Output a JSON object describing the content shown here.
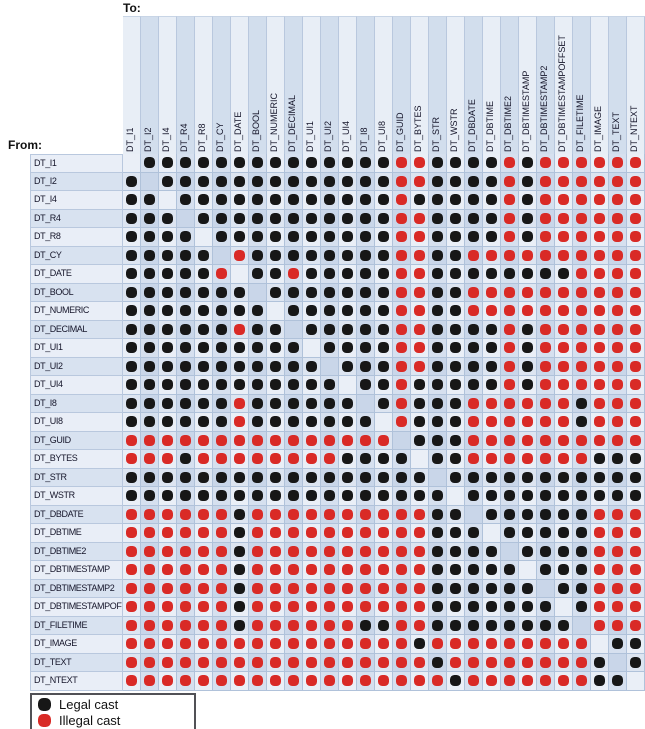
{
  "page": {
    "to_label": "To:",
    "from_label": "From:"
  },
  "legend": {
    "legal_label": "Legal cast",
    "illegal_label": "Illegal cast",
    "legal_color": "#171717",
    "illegal_color": "#d92a26"
  },
  "chart_data": {
    "type": "heatmap",
    "description": "Cast legality matrix between data types; rows are the From type, columns are the To type",
    "cell_encoding": {
      "B": "legal cast (black dot)",
      "R": "illegal cast (red dot)",
      "X": "no dot (same-type diagonal)"
    },
    "categories": [
      "DT_I1",
      "DT_I2",
      "DT_I4",
      "DT_R4",
      "DT_R8",
      "DT_CY",
      "DT_DATE",
      "DT_BOOL",
      "DT_NUMERIC",
      "DT_DECIMAL",
      "DT_UI1",
      "DT_UI2",
      "DT_UI4",
      "DT_I8",
      "DT_UI8",
      "DT_GUID",
      "DT_BYTES",
      "DT_STR",
      "DT_WSTR",
      "DT_DBDATE",
      "DT_DBTIME",
      "DT_DBTIME2",
      "DT_DBTIMESTAMP",
      "DT_DBTIMESTAMP2",
      "DT_DBTIMESTAMPOFFSET",
      "DT_FILETIME",
      "DT_IMAGE",
      "DT_TEXT",
      "DT_NTEXT"
    ],
    "rows": [
      "DT_I1",
      "DT_I2",
      "DT_I4",
      "DT_R4",
      "DT_R8",
      "DT_CY",
      "DT_DATE",
      "DT_BOOL",
      "DT_NUMERIC",
      "DT_DECIMAL",
      "DT_UI1",
      "DT_UI2",
      "DT_UI4",
      "DT_I8",
      "DT_UI8",
      "DT_GUID",
      "DT_BYTES",
      "DT_STR",
      "DT_WSTR",
      "DT_DBDATE",
      "DT_DBTIME",
      "DT_DBTIME2",
      "DT_DBTIMESTAMP",
      "DT_DBTIMESTAMP2",
      "DT_DBTIMESTAMPOFFSET",
      "DT_FILETIME",
      "DT_IMAGE",
      "DT_TEXT",
      "DT_NTEXT"
    ],
    "values": [
      "XBBBBBBBBBBBBBBRRBBBBRBRRRRRR",
      "BXBBBBBBBBBBBBBRRBBBBRBRRRRRR",
      "BBXBBBBBBBBBBBBRBBBBBRBRRRRRR",
      "BBBXBBBBBBBBBBBRRBBBBRBRRRRRR",
      "BBBBXBBBBBBBBBBRRBBBBRBRRRRRR",
      "BBBBBXRBBBBBBBBRRBBRRRRRRRRRR",
      "BBBBBRXBBRBBBBBRRBBBBBBBBRRRR",
      "BBBBBBBXBBBBBBBRRBBRRRRRRRRRR",
      "BBBBBBBBXBBBBBBRRBBRRRRRRRRRR",
      "BBBBBBRBBXBBBBBRRBBBBRBRRRRRR",
      "BBBBBBBBBBXBBBBRRBBBBRBRRRRRR",
      "BBBBBBBBBBBXBBBRRBBBBRBRRRRRR",
      "BBBBBBBBBBBBXBBRBBBBBRBRRRRRR",
      "BBBBBBRBBBBBBXBRBBBRRRRRRBRRR",
      "BBBBBBRBBBBBBBXRBBBRRRRRRBRRR",
      "RRRRRRRRRRRRRRRXBBBRRRRRRRRRR",
      "RRRBRRRRRRRRBBBBXBBRRRRRRRBBB",
      "BBBBBBBBBBBBBBBBBXBBBBBBBBBBB",
      "BBBBBBBBBBBBBBBBBBXBBBBBBBBBB",
      "RRRRRRBRRRRRRRRRRBBXBBBBBBRRR",
      "RRRRRRBRRRRRRRRRRBBBXBBBBBRRR",
      "RRRRRRBRRRRRRRRRRBBBBXBBBBRRR",
      "RRRRRRBRRRRRRRRRRBBBBBXBBBRRR",
      "RRRRRRBRRRRRRRRRRBBBBBBXBBRRR",
      "RRRRRRBRRRRRRRRRRBBBBBBBXBRRR",
      "RRRRRRBRRRRRRBBRRBBBBBBBBXRRR",
      "RRRRRRRRRRRRRRRRBRRRRRRRRRXBB",
      "RRRRRRRRRRRRRRRRRBRRRRRRRRBXB",
      "RRRRRRRRRRRRRRRRRRBRRRRRRRBBX"
    ]
  }
}
